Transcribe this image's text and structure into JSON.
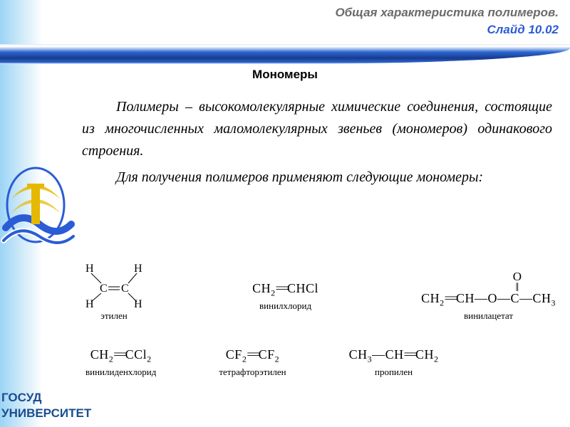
{
  "header": {
    "title": "Общая характеристика полимеров.",
    "slide": "Слайд 10.02"
  },
  "subtitle": "Мономеры",
  "paragraphs": {
    "p1": "Полимеры – высокомолекулярные химические соединения, состоящие из многочисленных маломолекулярных звеньев (мономеров) одинакового строения.",
    "p2": "Для получения полимеров применяют следующие мономеры:"
  },
  "chem": {
    "ethylene": {
      "caption": "этилен"
    },
    "vinylchloride": {
      "formula_html": "CH<span class='sub'>2</span><span class='dbond'>==</span>CHCl",
      "caption": "винилхлорид"
    },
    "vinylacetate": {
      "o": "O",
      "dbl": "‖",
      "line": "CH<span class='sub'>2</span><span class='dbond'>==</span>CH—O—C—CH<span class='sub'>3</span>",
      "caption": "винилацетат"
    },
    "vinylidene": {
      "formula_html": "CH<span class='sub'>2</span><span class='dbond'>==</span>CCl<span class='sub'>2</span>",
      "caption": "винилиденхлорид"
    },
    "tfe": {
      "formula_html": "CF<span class='sub'>2</span><span class='dbond'>==</span>CF<span class='sub'>2</span>",
      "caption": "тетрафторэтилен"
    },
    "propylene": {
      "formula_html": "CH<span class='sub'>3</span>—CH<span class='dbond'>==</span>CH<span class='sub'>2</span>",
      "caption": "пропилен"
    }
  },
  "university": {
    "line1": "ГОСУД",
    "line2": "УНИВЕРСИТЕТ"
  },
  "colors": {
    "accent_blue": "#2a5cd6",
    "stripe_dark": "#1a3a8f",
    "grey_title": "#6b6b6b",
    "uni_text": "#1a4d8f",
    "emblem_gold": "#e6b800",
    "emblem_blue": "#2a5cd6"
  }
}
